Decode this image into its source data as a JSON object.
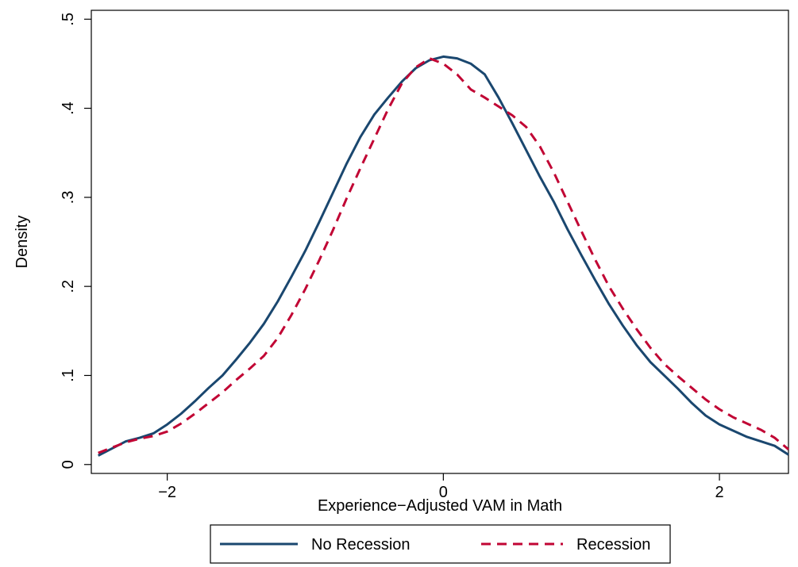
{
  "chart_data": {
    "type": "line",
    "title": "",
    "xlabel": "Experience−Adjusted VAM in Math",
    "ylabel": "Density",
    "xlim": [
      -2.55,
      2.5
    ],
    "ylim": [
      -0.01,
      0.51
    ],
    "x_ticks": [
      {
        "value": -2,
        "label": "−2"
      },
      {
        "value": 0,
        "label": "0"
      },
      {
        "value": 2,
        "label": "2"
      }
    ],
    "y_ticks": [
      {
        "value": 0,
        "label": "0"
      },
      {
        "value": 0.1,
        "label": ".1"
      },
      {
        "value": 0.2,
        "label": ".2"
      },
      {
        "value": 0.3,
        "label": ".3"
      },
      {
        "value": 0.4,
        "label": ".4"
      },
      {
        "value": 0.5,
        "label": ".5"
      }
    ],
    "grid": false,
    "legend_position": "bottom",
    "series": [
      {
        "name": "No Recession",
        "color": "#1a476f",
        "dash": "solid",
        "points": [
          [
            -2.5,
            0.01
          ],
          [
            -2.4,
            0.018
          ],
          [
            -2.3,
            0.026
          ],
          [
            -2.2,
            0.03
          ],
          [
            -2.1,
            0.035
          ],
          [
            -2.0,
            0.045
          ],
          [
            -1.9,
            0.057
          ],
          [
            -1.8,
            0.071
          ],
          [
            -1.7,
            0.086
          ],
          [
            -1.6,
            0.1
          ],
          [
            -1.5,
            0.118
          ],
          [
            -1.4,
            0.137
          ],
          [
            -1.3,
            0.158
          ],
          [
            -1.2,
            0.183
          ],
          [
            -1.1,
            0.211
          ],
          [
            -1.0,
            0.24
          ],
          [
            -0.9,
            0.272
          ],
          [
            -0.8,
            0.305
          ],
          [
            -0.7,
            0.338
          ],
          [
            -0.6,
            0.368
          ],
          [
            -0.5,
            0.393
          ],
          [
            -0.4,
            0.412
          ],
          [
            -0.3,
            0.43
          ],
          [
            -0.2,
            0.445
          ],
          [
            -0.1,
            0.454
          ],
          [
            0.0,
            0.458
          ],
          [
            0.1,
            0.456
          ],
          [
            0.2,
            0.45
          ],
          [
            0.3,
            0.438
          ],
          [
            0.4,
            0.412
          ],
          [
            0.5,
            0.383
          ],
          [
            0.6,
            0.353
          ],
          [
            0.7,
            0.323
          ],
          [
            0.8,
            0.295
          ],
          [
            0.9,
            0.264
          ],
          [
            1.0,
            0.235
          ],
          [
            1.1,
            0.207
          ],
          [
            1.2,
            0.18
          ],
          [
            1.3,
            0.156
          ],
          [
            1.4,
            0.134
          ],
          [
            1.5,
            0.115
          ],
          [
            1.6,
            0.1
          ],
          [
            1.7,
            0.085
          ],
          [
            1.8,
            0.069
          ],
          [
            1.9,
            0.055
          ],
          [
            2.0,
            0.045
          ],
          [
            2.1,
            0.038
          ],
          [
            2.2,
            0.031
          ],
          [
            2.3,
            0.026
          ],
          [
            2.4,
            0.021
          ],
          [
            2.5,
            0.011
          ]
        ]
      },
      {
        "name": "Recession",
        "color": "#c10534",
        "dash": "dashed",
        "points": [
          [
            -2.5,
            0.013
          ],
          [
            -2.4,
            0.019
          ],
          [
            -2.3,
            0.025
          ],
          [
            -2.2,
            0.029
          ],
          [
            -2.1,
            0.032
          ],
          [
            -2.0,
            0.037
          ],
          [
            -1.9,
            0.046
          ],
          [
            -1.8,
            0.057
          ],
          [
            -1.7,
            0.069
          ],
          [
            -1.6,
            0.081
          ],
          [
            -1.5,
            0.095
          ],
          [
            -1.4,
            0.108
          ],
          [
            -1.3,
            0.122
          ],
          [
            -1.2,
            0.142
          ],
          [
            -1.1,
            0.168
          ],
          [
            -1.0,
            0.197
          ],
          [
            -0.9,
            0.229
          ],
          [
            -0.8,
            0.263
          ],
          [
            -0.7,
            0.299
          ],
          [
            -0.6,
            0.333
          ],
          [
            -0.5,
            0.366
          ],
          [
            -0.4,
            0.399
          ],
          [
            -0.3,
            0.428
          ],
          [
            -0.2,
            0.446
          ],
          [
            -0.1,
            0.456
          ],
          [
            0.0,
            0.45
          ],
          [
            0.1,
            0.438
          ],
          [
            0.2,
            0.421
          ],
          [
            0.3,
            0.412
          ],
          [
            0.4,
            0.402
          ],
          [
            0.5,
            0.392
          ],
          [
            0.6,
            0.379
          ],
          [
            0.7,
            0.357
          ],
          [
            0.8,
            0.328
          ],
          [
            0.9,
            0.295
          ],
          [
            1.0,
            0.262
          ],
          [
            1.1,
            0.23
          ],
          [
            1.2,
            0.2
          ],
          [
            1.3,
            0.175
          ],
          [
            1.4,
            0.152
          ],
          [
            1.5,
            0.131
          ],
          [
            1.6,
            0.113
          ],
          [
            1.7,
            0.099
          ],
          [
            1.8,
            0.086
          ],
          [
            1.9,
            0.073
          ],
          [
            2.0,
            0.062
          ],
          [
            2.1,
            0.053
          ],
          [
            2.2,
            0.046
          ],
          [
            2.3,
            0.039
          ],
          [
            2.4,
            0.03
          ],
          [
            2.5,
            0.017
          ]
        ]
      }
    ]
  }
}
